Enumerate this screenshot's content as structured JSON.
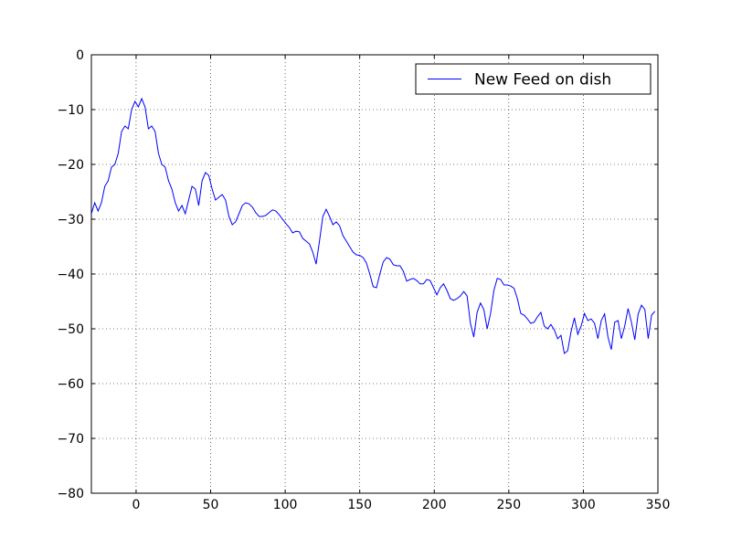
{
  "chart_data": {
    "type": "line",
    "x": [
      -30,
      -27.75,
      -25.5,
      -23.25,
      -21,
      -18.75,
      -16.5,
      -14.25,
      -12,
      -9.75,
      -7.5,
      -5.25,
      -3,
      -0.75,
      1.5,
      3.75,
      6,
      8.25,
      10.5,
      12.75,
      15,
      17.25,
      19.5,
      21.75,
      24,
      26.25,
      28.5,
      30.75,
      33,
      35.25,
      37.5,
      39.75,
      42,
      44.25,
      46.5,
      48.75,
      51,
      53.25,
      55.5,
      57.75,
      60,
      62.25,
      64.5,
      66.75,
      69,
      71.25,
      73.5,
      75.75,
      78,
      80.25,
      82.5,
      84.75,
      87,
      89.25,
      91.5,
      93.75,
      96,
      98.25,
      100.5,
      102.75,
      105,
      107.25,
      109.5,
      111.75,
      114,
      116.25,
      118.5,
      120.75,
      123,
      125.25,
      127.5,
      129.75,
      132,
      134.25,
      136.5,
      138.75,
      141,
      143.25,
      145.5,
      147.75,
      150,
      152.25,
      154.5,
      156.75,
      159,
      161.25,
      163.5,
      165.75,
      168,
      170.25,
      172.5,
      174.75,
      177,
      179.25,
      181.5,
      183.75,
      186,
      188.25,
      190.5,
      192.75,
      195,
      197.25,
      199.5,
      201.75,
      204,
      206.25,
      208.5,
      210.75,
      213,
      215.25,
      217.5,
      219.75,
      222,
      224.25,
      226.5,
      228.75,
      231,
      233.25,
      235.5,
      237.75,
      240,
      242.25,
      244.5,
      246.75,
      249,
      251.25,
      253.5,
      255.75,
      258,
      260.25,
      262.5,
      264.75,
      267,
      269.25,
      271.5,
      273.75,
      276,
      278.25,
      280.5,
      282.75,
      285,
      287.25,
      289.5,
      291.75,
      294,
      296.25,
      298.5,
      300.75,
      303,
      305.25,
      307.5,
      309.75,
      312,
      314.25,
      316.5,
      318.75,
      321,
      323.25,
      325.5,
      327.75,
      330,
      332.25,
      334.5,
      336.75,
      339,
      341.25,
      343.5,
      345.75,
      348
    ],
    "series": [
      {
        "name": "New Feed on dish",
        "color": "#0000ff",
        "values": [
          -29,
          -27,
          -28.5,
          -27,
          -24,
          -23,
          -20.5,
          -20,
          -18,
          -14,
          -13,
          -13.5,
          -10,
          -8.5,
          -9.5,
          -8,
          -9.5,
          -13.5,
          -13,
          -14,
          -18,
          -20,
          -20.5,
          -23,
          -24.5,
          -27,
          -28.5,
          -27.5,
          -29,
          -26.5,
          -24,
          -24.5,
          -27.5,
          -23,
          -21.5,
          -22,
          -24.5,
          -26.5,
          -26,
          -25.5,
          -26.5,
          -29.5,
          -31,
          -30.5,
          -29,
          -27.5,
          -27,
          -27.2,
          -27.8,
          -28.8,
          -29.5,
          -29.5,
          -29.3,
          -28.8,
          -28.3,
          -28.5,
          -29.2,
          -30,
          -30.8,
          -31.5,
          -32.5,
          -32.2,
          -32.3,
          -33.5,
          -34,
          -34.5,
          -36,
          -38.2,
          -34,
          -29.5,
          -28.2,
          -29.5,
          -31,
          -30.5,
          -31.2,
          -33,
          -34,
          -35,
          -36,
          -36.5,
          -36.6,
          -37,
          -38,
          -40,
          -42.3,
          -42.5,
          -40,
          -37.8,
          -37,
          -37.3,
          -38.3,
          -38.5,
          -38.5,
          -39.5,
          -41.3,
          -41,
          -40.8,
          -41.2,
          -41.8,
          -41.8,
          -41,
          -41.2,
          -42.5,
          -43.8,
          -42.5,
          -41.8,
          -43,
          -44.5,
          -44.8,
          -44.5,
          -44,
          -43.2,
          -44,
          -49,
          -51.5,
          -47,
          -45.3,
          -46.5,
          -50,
          -47.2,
          -43,
          -40.8,
          -41,
          -42,
          -42,
          -42.2,
          -42.6,
          -44.5,
          -47.2,
          -47.5,
          -48.2,
          -49,
          -48.8,
          -47.8,
          -47,
          -49.5,
          -50,
          -49.2,
          -50.2,
          -51.8,
          -51.2,
          -54.5,
          -54,
          -50.5,
          -48,
          -51,
          -49.5,
          -47.2,
          -48.5,
          -48.2,
          -49,
          -51.8,
          -48.5,
          -47.3,
          -51.5,
          -53.8,
          -48.8,
          -48.5,
          -51.8,
          -49.5,
          -46.3,
          -48.8,
          -52,
          -47.3,
          -45.7,
          -46.5,
          -51.8,
          -47.5,
          -46.8
        ]
      }
    ],
    "xlim": [
      -30,
      350
    ],
    "xticks": [
      0,
      50,
      100,
      150,
      200,
      250,
      300,
      350
    ],
    "ylim": [
      -80,
      0
    ],
    "yticks": [
      {
        "value": -80,
        "label": "−80"
      },
      {
        "value": -70,
        "label": "−70"
      },
      {
        "value": -60,
        "label": "−60"
      },
      {
        "value": -50,
        "label": "−50"
      },
      {
        "value": -40,
        "label": "−40"
      },
      {
        "value": -30,
        "label": "−30"
      },
      {
        "value": -20,
        "label": "−20"
      },
      {
        "value": -10,
        "label": "−10"
      },
      0
    ],
    "grid": true,
    "legend": "upper right"
  }
}
